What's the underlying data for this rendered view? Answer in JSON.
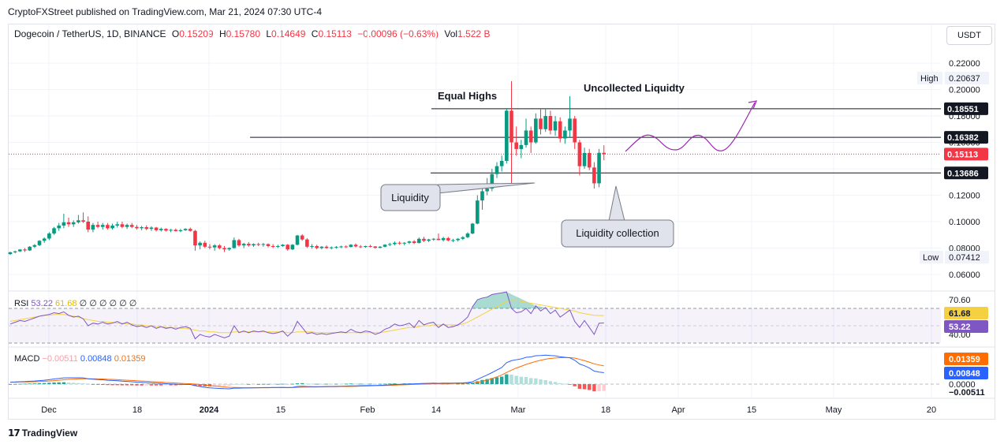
{
  "publisher": "CryptoFXStreet published on TradingView.com, Mar 21, 2024 07:30 UTC-4",
  "header": {
    "symbol": "Dogecoin / TetherUS, 1D, BINANCE",
    "o_label": "O",
    "o": "0.15209",
    "h_label": "H",
    "h": "0.15780",
    "l_label": "L",
    "l": "0.14649",
    "c_label": "C",
    "c": "0.15113",
    "change": "−0.00096 (−0.63%)",
    "vol_label": "Vol",
    "vol": "1.522 B"
  },
  "currency": "USDT",
  "brand": "TradingView",
  "colors": {
    "up": "#089981",
    "down": "#f23645",
    "rsi": "#7e57c2",
    "rsi_ma": "#f5d142",
    "macd": "#2962ff",
    "signal": "#ff6d00",
    "path": "#9c27b0"
  },
  "price_axis": {
    "ticks": [
      "0.22000",
      "0.20000",
      "0.18000",
      "0.16000",
      "0.12000",
      "0.10000",
      "0.08000",
      "0.06000"
    ],
    "high_label": "High",
    "high": "0.20637",
    "low_label": "Low",
    "low": "0.07412",
    "levels": [
      "0.18551",
      "0.16382",
      "0.13686"
    ],
    "last": "0.15113"
  },
  "annotations": {
    "equal_highs": "Equal Highs",
    "uncollected": "Uncollected Liquidty",
    "liquidity": "Liquidity",
    "liquidity_collection": "Liquidity collection"
  },
  "rsi": {
    "label": "RSI",
    "value": "53.22",
    "ma": "61.68",
    "extras": "∅ ∅ ∅ ∅ ∅ ∅",
    "axis": [
      "70.60",
      "40.00"
    ]
  },
  "macd": {
    "label": "MACD",
    "hist": "−0.00511",
    "macd": "0.00848",
    "signal": "0.01359",
    "axis_zero": "0.0000"
  },
  "time_axis": [
    "Dec",
    "18",
    "2024",
    "15",
    "Feb",
    "14",
    "Mar",
    "18",
    "Apr",
    "15",
    "May",
    "20"
  ],
  "chart_data": {
    "type": "candlestick",
    "title": "Dogecoin / TetherUS, 1D, BINANCE",
    "ylim": [
      0.05,
      0.225
    ],
    "levels": [
      0.18551,
      0.16382,
      0.13686
    ],
    "high": 0.20637,
    "low": 0.07412,
    "last": 0.15113,
    "ohlc": [
      [
        0.0754,
        0.0772,
        0.0748,
        0.0768
      ],
      [
        0.0768,
        0.078,
        0.076,
        0.0775
      ],
      [
        0.0775,
        0.0792,
        0.077,
        0.0789
      ],
      [
        0.0789,
        0.08,
        0.077,
        0.0782
      ],
      [
        0.0782,
        0.0815,
        0.0778,
        0.081
      ],
      [
        0.081,
        0.083,
        0.08,
        0.0822
      ],
      [
        0.0822,
        0.086,
        0.0815,
        0.0855
      ],
      [
        0.0855,
        0.088,
        0.084,
        0.0872
      ],
      [
        0.0872,
        0.092,
        0.086,
        0.091
      ],
      [
        0.091,
        0.096,
        0.09,
        0.095
      ],
      [
        0.095,
        0.099,
        0.093,
        0.097
      ],
      [
        0.097,
        0.106,
        0.095,
        0.0995
      ],
      [
        0.0995,
        0.103,
        0.096,
        0.098
      ],
      [
        0.098,
        0.101,
        0.096,
        0.0995
      ],
      [
        0.0995,
        0.105,
        0.0985,
        0.101
      ],
      [
        0.101,
        0.107,
        0.099,
        0.1
      ],
      [
        0.1,
        0.104,
        0.092,
        0.094
      ],
      [
        0.094,
        0.099,
        0.092,
        0.0975
      ],
      [
        0.0975,
        0.1,
        0.095,
        0.096
      ],
      [
        0.096,
        0.099,
        0.094,
        0.0975
      ],
      [
        0.0975,
        0.099,
        0.094,
        0.095
      ],
      [
        0.095,
        0.0985,
        0.094,
        0.097
      ],
      [
        0.097,
        0.1,
        0.0955,
        0.098
      ],
      [
        0.098,
        0.1,
        0.095,
        0.096
      ],
      [
        0.096,
        0.0985,
        0.0945,
        0.0975
      ],
      [
        0.0975,
        0.099,
        0.095,
        0.096
      ],
      [
        0.096,
        0.0975,
        0.094,
        0.095
      ],
      [
        0.095,
        0.0968,
        0.0935,
        0.0958
      ],
      [
        0.0958,
        0.0972,
        0.0935,
        0.0945
      ],
      [
        0.0945,
        0.0965,
        0.093,
        0.0955
      ],
      [
        0.0955,
        0.096,
        0.0925,
        0.0935
      ],
      [
        0.0935,
        0.0955,
        0.0925,
        0.0945
      ],
      [
        0.0945,
        0.095,
        0.0925,
        0.0932
      ],
      [
        0.0932,
        0.0945,
        0.092,
        0.0938
      ],
      [
        0.0938,
        0.0948,
        0.0925,
        0.0928
      ],
      [
        0.0928,
        0.0945,
        0.092,
        0.0935
      ],
      [
        0.0935,
        0.095,
        0.093,
        0.0945
      ],
      [
        0.0945,
        0.0955,
        0.0925,
        0.093
      ],
      [
        0.093,
        0.0938,
        0.078,
        0.082
      ],
      [
        0.082,
        0.085,
        0.079,
        0.084
      ],
      [
        0.084,
        0.0855,
        0.08,
        0.081
      ],
      [
        0.081,
        0.083,
        0.079,
        0.0805
      ],
      [
        0.0805,
        0.083,
        0.078,
        0.082
      ],
      [
        0.082,
        0.083,
        0.079,
        0.08
      ],
      [
        0.08,
        0.0815,
        0.077,
        0.079
      ],
      [
        0.079,
        0.0805,
        0.078,
        0.08
      ],
      [
        0.08,
        0.088,
        0.0795,
        0.086
      ],
      [
        0.086,
        0.087,
        0.081,
        0.082
      ],
      [
        0.082,
        0.084,
        0.08,
        0.0832
      ],
      [
        0.0832,
        0.0845,
        0.081,
        0.082
      ],
      [
        0.082,
        0.0835,
        0.081,
        0.083
      ],
      [
        0.083,
        0.084,
        0.0815,
        0.0825
      ],
      [
        0.0825,
        0.0838,
        0.081,
        0.083
      ],
      [
        0.083,
        0.0835,
        0.0805,
        0.0815
      ],
      [
        0.0815,
        0.083,
        0.08,
        0.081
      ],
      [
        0.081,
        0.0825,
        0.08,
        0.0815
      ],
      [
        0.0815,
        0.083,
        0.081,
        0.0825
      ],
      [
        0.0825,
        0.083,
        0.078,
        0.079
      ],
      [
        0.079,
        0.083,
        0.0785,
        0.0825
      ],
      [
        0.0825,
        0.09,
        0.082,
        0.0895
      ],
      [
        0.0895,
        0.0905,
        0.0855,
        0.0865
      ],
      [
        0.0865,
        0.0875,
        0.08,
        0.081
      ],
      [
        0.081,
        0.083,
        0.0795,
        0.0815
      ],
      [
        0.0815,
        0.0825,
        0.079,
        0.08
      ],
      [
        0.08,
        0.0815,
        0.079,
        0.081
      ],
      [
        0.081,
        0.082,
        0.0795,
        0.08
      ],
      [
        0.08,
        0.0812,
        0.079,
        0.0805
      ],
      [
        0.0805,
        0.0815,
        0.0795,
        0.0808
      ],
      [
        0.0808,
        0.0818,
        0.08,
        0.0812
      ],
      [
        0.0812,
        0.082,
        0.08,
        0.0808
      ],
      [
        0.0808,
        0.083,
        0.0805,
        0.0825
      ],
      [
        0.0825,
        0.0835,
        0.0805,
        0.0812
      ],
      [
        0.0812,
        0.0822,
        0.08,
        0.0808
      ],
      [
        0.0808,
        0.0818,
        0.0802,
        0.0815
      ],
      [
        0.0815,
        0.0825,
        0.0805,
        0.0812
      ],
      [
        0.0812,
        0.0815,
        0.0795,
        0.0802
      ],
      [
        0.0802,
        0.0815,
        0.0798,
        0.081
      ],
      [
        0.081,
        0.083,
        0.0805,
        0.0825
      ],
      [
        0.0825,
        0.084,
        0.0815,
        0.083
      ],
      [
        0.083,
        0.085,
        0.082,
        0.084
      ],
      [
        0.084,
        0.085,
        0.0825,
        0.0835
      ],
      [
        0.0835,
        0.0845,
        0.082,
        0.084
      ],
      [
        0.084,
        0.0855,
        0.083,
        0.085
      ],
      [
        0.085,
        0.086,
        0.083,
        0.0838
      ],
      [
        0.0838,
        0.088,
        0.0835,
        0.087
      ],
      [
        0.087,
        0.0885,
        0.0845,
        0.0855
      ],
      [
        0.0855,
        0.087,
        0.0845,
        0.0865
      ],
      [
        0.0865,
        0.0875,
        0.0855,
        0.087
      ],
      [
        0.087,
        0.091,
        0.086,
        0.086
      ],
      [
        0.086,
        0.0885,
        0.085,
        0.0875
      ],
      [
        0.0875,
        0.0885,
        0.085,
        0.0858
      ],
      [
        0.0858,
        0.087,
        0.0845,
        0.086
      ],
      [
        0.086,
        0.0875,
        0.085,
        0.087
      ],
      [
        0.087,
        0.089,
        0.086,
        0.0882
      ],
      [
        0.0882,
        0.092,
        0.0875,
        0.091
      ],
      [
        0.091,
        0.099,
        0.0905,
        0.0985
      ],
      [
        0.0985,
        0.12,
        0.098,
        0.116
      ],
      [
        0.116,
        0.125,
        0.109,
        0.123
      ],
      [
        0.123,
        0.133,
        0.12,
        0.125
      ],
      [
        0.125,
        0.14,
        0.123,
        0.136
      ],
      [
        0.136,
        0.145,
        0.133,
        0.142
      ],
      [
        0.142,
        0.15,
        0.138,
        0.146
      ],
      [
        0.146,
        0.186,
        0.144,
        0.184
      ],
      [
        0.184,
        0.2064,
        0.128,
        0.16
      ],
      [
        0.16,
        0.172,
        0.15,
        0.155
      ],
      [
        0.155,
        0.162,
        0.148,
        0.158
      ],
      [
        0.158,
        0.178,
        0.156,
        0.169
      ],
      [
        0.169,
        0.172,
        0.152,
        0.16
      ],
      [
        0.16,
        0.182,
        0.159,
        0.178
      ],
      [
        0.178,
        0.185,
        0.166,
        0.17
      ],
      [
        0.17,
        0.185,
        0.168,
        0.18
      ],
      [
        0.18,
        0.184,
        0.166,
        0.169
      ],
      [
        0.169,
        0.18,
        0.165,
        0.176
      ],
      [
        0.176,
        0.179,
        0.16,
        0.163
      ],
      [
        0.163,
        0.172,
        0.159,
        0.169
      ],
      [
        0.169,
        0.195,
        0.164,
        0.178
      ],
      [
        0.178,
        0.18,
        0.155,
        0.16
      ],
      [
        0.16,
        0.162,
        0.135,
        0.142
      ],
      [
        0.142,
        0.156,
        0.14,
        0.152
      ],
      [
        0.152,
        0.155,
        0.139,
        0.141
      ],
      [
        0.141,
        0.145,
        0.125,
        0.129
      ],
      [
        0.129,
        0.155,
        0.126,
        0.1521
      ],
      [
        0.1521,
        0.1578,
        0.1465,
        0.1511
      ]
    ],
    "rsi": [
      52,
      54,
      56,
      55,
      57,
      59,
      61,
      62,
      63,
      65,
      64,
      66,
      62,
      60,
      61,
      58,
      50,
      53,
      52,
      54,
      52,
      53,
      55,
      52,
      54,
      51,
      49,
      50,
      48,
      50,
      47,
      49,
      47,
      48,
      46,
      48,
      49,
      47,
      35,
      40,
      38,
      37,
      40,
      38,
      36,
      38,
      50,
      42,
      44,
      42,
      44,
      43,
      44,
      42,
      41,
      42,
      44,
      38,
      43,
      55,
      48,
      41,
      42,
      40,
      41,
      40,
      41,
      42,
      43,
      42,
      46,
      43,
      42,
      44,
      43,
      40,
      42,
      46,
      48,
      52,
      50,
      51,
      53,
      48,
      56,
      51,
      53,
      54,
      48,
      52,
      48,
      49,
      51,
      55,
      60,
      72,
      80,
      82,
      83,
      86,
      87,
      88,
      89,
      70,
      65,
      66,
      70,
      64,
      73,
      67,
      71,
      64,
      68,
      60,
      64,
      68,
      55,
      48,
      56,
      48,
      40,
      53,
      53.22
    ],
    "rsi_ma": [
      55,
      56,
      57,
      58,
      59,
      60,
      61,
      62,
      62,
      63,
      63,
      63,
      62,
      61,
      60,
      58,
      57,
      56,
      55,
      55,
      54,
      54,
      53,
      53,
      52,
      52,
      51,
      51,
      50,
      50,
      49,
      49,
      48,
      48,
      48,
      47,
      47,
      46,
      45,
      44,
      44,
      43,
      43,
      42,
      42,
      42,
      43,
      43,
      43,
      43,
      43,
      43,
      43,
      43,
      43,
      43,
      43,
      42,
      42,
      43,
      43,
      43,
      43,
      42,
      42,
      42,
      42,
      42,
      42,
      42,
      42,
      42,
      42,
      42,
      42,
      42,
      42,
      43,
      44,
      45,
      46,
      47,
      48,
      48,
      49,
      50,
      50,
      51,
      51,
      51,
      51,
      51,
      51,
      52,
      54,
      57,
      60,
      63,
      66,
      69,
      72,
      75,
      78,
      79,
      79,
      78,
      77,
      76,
      75,
      74,
      73,
      72,
      71,
      70,
      69,
      68,
      67,
      65,
      64,
      63,
      62,
      61.8,
      61.68
    ],
    "macd_line": [
      0.0015,
      0.0016,
      0.0018,
      0.0019,
      0.0021,
      0.0023,
      0.0026,
      0.0029,
      0.0033,
      0.0038,
      0.0042,
      0.0046,
      0.0047,
      0.0047,
      0.0047,
      0.0046,
      0.004,
      0.0037,
      0.0034,
      0.0032,
      0.0029,
      0.0027,
      0.0025,
      0.0022,
      0.002,
      0.0018,
      0.0015,
      0.0013,
      0.0011,
      0.0009,
      0.0007,
      0.0005,
      0.0003,
      0.0001,
      -0.0001,
      -0.0002,
      -0.0002,
      -0.0003,
      -0.0012,
      -0.0018,
      -0.0024,
      -0.0028,
      -0.003,
      -0.0032,
      -0.0034,
      -0.0035,
      -0.003,
      -0.003,
      -0.0029,
      -0.0029,
      -0.0028,
      -0.0027,
      -0.0026,
      -0.0026,
      -0.0025,
      -0.0025,
      -0.0024,
      -0.0026,
      -0.0024,
      -0.0018,
      -0.0016,
      -0.0018,
      -0.0019,
      -0.0019,
      -0.0019,
      -0.0018,
      -0.0018,
      -0.0017,
      -0.0016,
      -0.0015,
      -0.0013,
      -0.0013,
      -0.0012,
      -0.0011,
      -0.001,
      -0.001,
      -0.0009,
      -0.0007,
      -0.0005,
      -0.0003,
      -0.0002,
      0.0,
      0.0001,
      0.0002,
      0.0004,
      0.0005,
      0.0006,
      0.0007,
      0.0006,
      0.0007,
      0.0007,
      0.0007,
      0.0008,
      0.0009,
      0.0012,
      0.0018,
      0.0035,
      0.0052,
      0.0068,
      0.0086,
      0.0105,
      0.0124,
      0.016,
      0.0175,
      0.0182,
      0.0188,
      0.02,
      0.0203,
      0.0212,
      0.0213,
      0.0216,
      0.0213,
      0.0211,
      0.0204,
      0.02,
      0.0196,
      0.0178,
      0.015,
      0.0137,
      0.012,
      0.0097,
      0.009,
      0.0085
    ],
    "macd_signal": [
      0.0015,
      0.0015,
      0.0016,
      0.0016,
      0.0017,
      0.0018,
      0.0019,
      0.0021,
      0.0023,
      0.0026,
      0.0029,
      0.0032,
      0.0035,
      0.0037,
      0.0039,
      0.004,
      0.004,
      0.004,
      0.0039,
      0.0038,
      0.0036,
      0.0035,
      0.0033,
      0.0031,
      0.0029,
      0.0027,
      0.0025,
      0.0023,
      0.0021,
      0.0019,
      0.0017,
      0.0015,
      0.0012,
      0.001,
      0.0008,
      0.0006,
      0.0004,
      0.0003,
      0.0,
      -0.0003,
      -0.0007,
      -0.0011,
      -0.0015,
      -0.0018,
      -0.0021,
      -0.0024,
      -0.0025,
      -0.0026,
      -0.0027,
      -0.0027,
      -0.0027,
      -0.0027,
      -0.0027,
      -0.0027,
      -0.0026,
      -0.0026,
      -0.0026,
      -0.0026,
      -0.0026,
      -0.0024,
      -0.0023,
      -0.0022,
      -0.0021,
      -0.0021,
      -0.002,
      -0.002,
      -0.0019,
      -0.0019,
      -0.0018,
      -0.0018,
      -0.0017,
      -0.0016,
      -0.0015,
      -0.0014,
      -0.0013,
      -0.0012,
      -0.0011,
      -0.001,
      -0.0009,
      -0.0008,
      -0.0006,
      -0.0005,
      -0.0004,
      -0.0002,
      -0.0001,
      0.0,
      0.0001,
      0.0002,
      0.0003,
      0.0004,
      0.0004,
      0.0005,
      0.0005,
      0.0006,
      0.0007,
      0.0009,
      0.0014,
      0.0021,
      0.003,
      0.0041,
      0.0054,
      0.0068,
      0.0087,
      0.0104,
      0.012,
      0.0133,
      0.0147,
      0.0158,
      0.0169,
      0.0178,
      0.0186,
      0.0191,
      0.0195,
      0.0197,
      0.0198,
      0.0198,
      0.0194,
      0.0185,
      0.0175,
      0.0164,
      0.0151,
      0.0143,
      0.0136
    ]
  }
}
